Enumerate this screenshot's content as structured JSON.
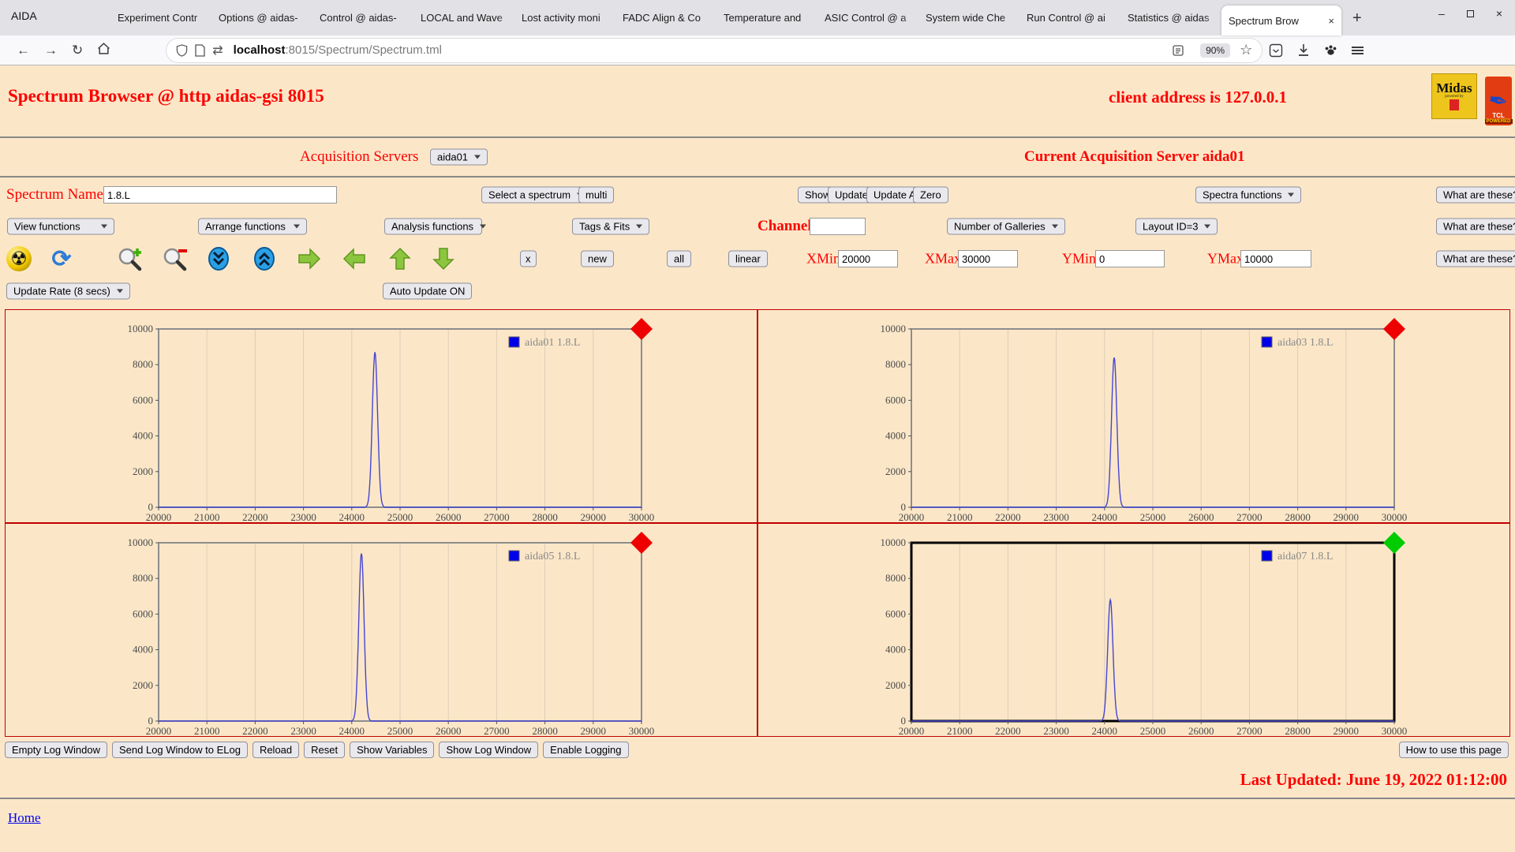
{
  "browser": {
    "window_title": "AIDA",
    "tabs": [
      "Experiment Contr",
      "Options @ aidas-",
      "Control @ aidas-",
      "LOCAL and Wave",
      "Lost activity moni",
      "FADC Align & Co",
      "Temperature and",
      "ASIC Control @ a",
      "System wide Che",
      "Run Control @ ai",
      "Statistics @ aidas"
    ],
    "active_tab": "Spectrum Brow",
    "close_glyph": "×",
    "new_tab_glyph": "+",
    "minimize_glyph": "–",
    "url_host": "localhost",
    "url_rest": ":8015/Spectrum/Spectrum.tml",
    "zoom_level": "90%",
    "star_glyph": "☆"
  },
  "header": {
    "title": "Spectrum Browser @ http aidas-gsi 8015",
    "client_address": "client address is 127.0.0.1",
    "midas_logo_text": "Midas",
    "midas_logo_sub": "powered by",
    "tcl_logo_line1": "TCL",
    "tcl_logo_line2": "POWERED"
  },
  "acquisition": {
    "label": "Acquisition Servers",
    "server": "aida01",
    "current": "Current Acquisition Server aida01"
  },
  "toolbar": {
    "spectrum_name_label": "Spectrum Name:",
    "spectrum_name_value": "1.8.L",
    "select_spectrum": "Select a spectrum",
    "multi": "multi",
    "show": "Show",
    "update": "Update",
    "update_all": "Update All",
    "zero": "Zero",
    "spectra_functions": "Spectra functions",
    "what_are_these": "What are these?",
    "view_functions": "View functions",
    "arrange_functions": "Arrange functions",
    "analysis_functions": "Analysis functions",
    "tags_fits": "Tags & Fits",
    "channel_label": "Channel:",
    "channel_value": "",
    "number_of_galleries": "Number of Galleries",
    "layout_id": "Layout ID=3",
    "x_button": "x",
    "new_button": "new",
    "all_button": "all",
    "linear_button": "linear",
    "xmin_label": "XMin",
    "xmin_value": "20000",
    "xmax_label": "XMax",
    "xmax_value": "30000",
    "ymin_label": "YMin",
    "ymin_value": "0",
    "ymax_label": "YMax",
    "ymax_value": "10000",
    "update_rate": "Update Rate (8 secs)",
    "auto_update": "Auto Update ON"
  },
  "chart_data": {
    "type": "line",
    "xlabel": "",
    "ylabel": "",
    "xlim": [
      20000,
      30000
    ],
    "ylim": [
      0,
      10000
    ],
    "x_ticks": [
      20000,
      21000,
      22000,
      23000,
      24000,
      25000,
      26000,
      27000,
      28000,
      29000,
      30000
    ],
    "y_ticks": [
      0,
      2000,
      4000,
      6000,
      8000,
      10000
    ],
    "grid": "vertical",
    "legend_position": "top-right",
    "line_color": "#4646d2",
    "legend_swatch_color": "#0000e8",
    "peak_sigma": 55,
    "panels": [
      {
        "legend": "aida01 1.8.L",
        "peak_center": 24480,
        "peak_height": 8700,
        "baseline": 0,
        "status_color": "#ee0000",
        "highlighted": false
      },
      {
        "legend": "aida03 1.8.L",
        "peak_center": 24200,
        "peak_height": 8400,
        "baseline": 0,
        "status_color": "#ee0000",
        "highlighted": false
      },
      {
        "legend": "aida05 1.8.L",
        "peak_center": 24200,
        "peak_height": 9400,
        "baseline": 0,
        "status_color": "#ee0000",
        "highlighted": false
      },
      {
        "legend": "aida07 1.8.L",
        "peak_center": 24120,
        "peak_height": 6800,
        "baseline": 0,
        "status_color": "#00cc00",
        "highlighted": true
      }
    ]
  },
  "footer": {
    "buttons": [
      "Empty Log Window",
      "Send Log Window to ELog",
      "Reload",
      "Reset",
      "Show Variables",
      "Show Log Window",
      "Enable Logging"
    ],
    "how_to": "How to use this page",
    "last_updated": "Last Updated: June 19, 2022 01:12:00",
    "home": "Home"
  }
}
